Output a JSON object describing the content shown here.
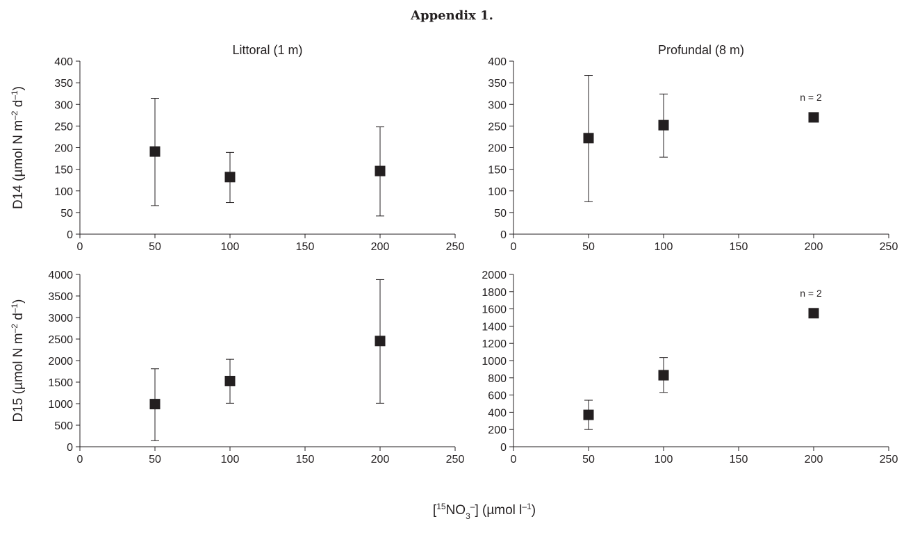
{
  "heading": "Appendix 1.",
  "ylabels": [
    "D14 (µmol N m–2 d–1)",
    "D15 (µmol N m–2 d–1)"
  ],
  "xlabel": "[15NO3–] (µmol l–1)",
  "chart_data": [
    {
      "type": "scatter",
      "title": "Littoral (1 m)",
      "ylabel": "D14 (µmol N m–2 d–1)",
      "xlim": [
        0,
        250
      ],
      "xticks": [
        0,
        50,
        100,
        150,
        200,
        250
      ],
      "ylim": [
        0,
        400
      ],
      "yticks": [
        0,
        50,
        100,
        150,
        200,
        250,
        300,
        350,
        400
      ],
      "x": [
        50,
        100,
        200
      ],
      "y": [
        191,
        132,
        146
      ],
      "err_low": [
        66,
        73,
        42
      ],
      "err_high": [
        314,
        189,
        248
      ],
      "annotation": ""
    },
    {
      "type": "scatter",
      "title": "Profundal (8 m)",
      "ylabel": "",
      "xlim": [
        0,
        250
      ],
      "xticks": [
        0,
        50,
        100,
        150,
        200,
        250
      ],
      "ylim": [
        0,
        400
      ],
      "yticks": [
        0,
        50,
        100,
        150,
        200,
        250,
        300,
        350,
        400
      ],
      "x": [
        50,
        100,
        200
      ],
      "y": [
        222,
        252,
        270
      ],
      "err_low": [
        75,
        178,
        null
      ],
      "err_high": [
        367,
        324,
        null
      ],
      "annotation": "n = 2"
    },
    {
      "type": "scatter",
      "title": "",
      "ylabel": "D15 (µmol N m–2 d–1)",
      "xlim": [
        0,
        250
      ],
      "xticks": [
        0,
        50,
        100,
        150,
        200,
        250
      ],
      "ylim": [
        0,
        4000
      ],
      "yticks": [
        0,
        500,
        1000,
        1500,
        2000,
        2500,
        3000,
        3500,
        4000
      ],
      "x": [
        50,
        100,
        200
      ],
      "y": [
        990,
        1525,
        2455
      ],
      "err_low": [
        140,
        1010,
        1010
      ],
      "err_high": [
        1810,
        2030,
        3880
      ],
      "annotation": ""
    },
    {
      "type": "scatter",
      "title": "",
      "ylabel": "",
      "xlim": [
        0,
        250
      ],
      "xticks": [
        0,
        50,
        100,
        150,
        200,
        250
      ],
      "ylim": [
        0,
        2000
      ],
      "yticks": [
        0,
        200,
        400,
        600,
        800,
        1000,
        1200,
        1400,
        1600,
        1800,
        2000
      ],
      "x": [
        50,
        100,
        200
      ],
      "y": [
        370,
        830,
        1550
      ],
      "err_low": [
        200,
        630,
        null
      ],
      "err_high": [
        540,
        1035,
        null
      ],
      "annotation": "n = 2"
    }
  ]
}
